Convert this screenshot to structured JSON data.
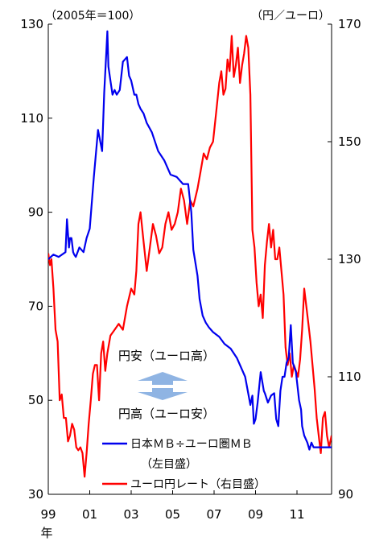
{
  "chart_data": {
    "type": "line",
    "left_unit": "（2005年＝100）",
    "right_unit": "（円／ユーロ）",
    "left_axis": {
      "min": 30,
      "max": 130,
      "ticks": [
        30,
        50,
        70,
        90,
        110,
        130
      ]
    },
    "right_axis": {
      "min": 90,
      "max": 170,
      "ticks": [
        90,
        110,
        130,
        150,
        170
      ]
    },
    "x_axis": {
      "min": 1999,
      "max": 2012.67,
      "ticks": [
        {
          "value": 1999,
          "label": "99"
        },
        {
          "value": 2001,
          "label": "01"
        },
        {
          "value": 2003,
          "label": "03"
        },
        {
          "value": 2005,
          "label": "05"
        },
        {
          "value": 2007,
          "label": "07"
        },
        {
          "value": 2009,
          "label": "09"
        },
        {
          "value": 2011,
          "label": "11"
        }
      ],
      "unit": "年"
    },
    "annotations": {
      "weak_yen": "円安（ユーロ高）",
      "strong_yen": "円高（ユーロ安）"
    },
    "legend": {
      "mb_line1": "日本ＭＢ÷ユーロ圏ＭＢ",
      "mb_line2": "（左目盛）",
      "fx": "ユーロ円レート（右目盛）"
    },
    "colors": {
      "mb": "#0000ee",
      "fx": "#ff0000",
      "arrow": "#8fb4e3"
    },
    "series": [
      {
        "name": "日本ＭＢ÷ユーロ圏ＭＢ",
        "axis": "left",
        "x": [
          1999.0,
          1999.25,
          1999.5,
          1999.83,
          1999.9,
          2000.0,
          2000.05,
          2000.12,
          2000.2,
          2000.25,
          2000.33,
          2000.5,
          2000.7,
          2000.85,
          2001.0,
          2001.2,
          2001.4,
          2001.6,
          2001.7,
          2001.8,
          2001.85,
          2001.9,
          2002.0,
          2002.1,
          2002.2,
          2002.3,
          2002.45,
          2002.6,
          2002.8,
          2002.9,
          2003.0,
          2003.15,
          2003.25,
          2003.35,
          2003.45,
          2003.6,
          2003.75,
          2004.0,
          2004.3,
          2004.6,
          2004.9,
          2005.2,
          2005.5,
          2005.75,
          2005.9,
          2006.0,
          2006.2,
          2006.3,
          2006.45,
          2006.6,
          2006.75,
          2006.95,
          2007.25,
          2007.5,
          2007.8,
          2008.1,
          2008.5,
          2008.75,
          2008.85,
          2008.92,
          2009.0,
          2009.1,
          2009.25,
          2009.4,
          2009.45,
          2009.6,
          2009.75,
          2009.9,
          2010.0,
          2010.1,
          2010.2,
          2010.3,
          2010.4,
          2010.5,
          2010.6,
          2010.7,
          2010.8,
          2010.95,
          2011.1,
          2011.2,
          2011.25,
          2011.35,
          2011.5,
          2011.6,
          2011.7,
          2011.8,
          2011.9,
          2012.0,
          2012.15,
          2012.3,
          2012.4,
          2012.5,
          2012.67
        ],
        "values": [
          80,
          81,
          80.5,
          81.5,
          88.5,
          82.5,
          84.5,
          84.5,
          81.5,
          81,
          80.5,
          82.5,
          81.5,
          84.5,
          86.5,
          97.5,
          107.5,
          103,
          115.5,
          124,
          128.5,
          121,
          118,
          115,
          116,
          115,
          116,
          122,
          123,
          119,
          118,
          115,
          115,
          113,
          112,
          111,
          109,
          107,
          103,
          101,
          98,
          97.5,
          96,
          96,
          90,
          82,
          76.5,
          71.5,
          68,
          66.5,
          65.5,
          64.5,
          63.5,
          62,
          61,
          59,
          55,
          49,
          51,
          45,
          46,
          49.5,
          56,
          52,
          51.5,
          49.5,
          51,
          51.5,
          46,
          44.5,
          52,
          55,
          55,
          58,
          59,
          66,
          58,
          56,
          50,
          48,
          44.5,
          42.5,
          41,
          39.5,
          41,
          40,
          40,
          40,
          40,
          40,
          40,
          40,
          40
        ]
      },
      {
        "name": "ユーロ円レート（右目盛）",
        "axis": "right",
        "x": [
          1999.0,
          1999.08,
          1999.15,
          1999.25,
          1999.35,
          1999.45,
          1999.55,
          1999.65,
          1999.75,
          1999.85,
          1999.95,
          2000.05,
          2000.15,
          2000.25,
          2000.35,
          2000.45,
          2000.55,
          2000.65,
          2000.75,
          2000.85,
          2000.95,
          2001.05,
          2001.15,
          2001.25,
          2001.35,
          2001.45,
          2001.55,
          2001.65,
          2001.75,
          2001.85,
          2002.0,
          2002.2,
          2002.4,
          2002.6,
          2002.8,
          2003.0,
          2003.15,
          2003.25,
          2003.35,
          2003.45,
          2003.6,
          2003.75,
          2003.9,
          2004.05,
          2004.2,
          2004.35,
          2004.5,
          2004.65,
          2004.8,
          2004.95,
          2005.1,
          2005.25,
          2005.4,
          2005.55,
          2005.7,
          2005.85,
          2006.0,
          2006.2,
          2006.35,
          2006.5,
          2006.65,
          2006.8,
          2006.95,
          2007.1,
          2007.25,
          2007.35,
          2007.45,
          2007.55,
          2007.65,
          2007.75,
          2007.85,
          2007.95,
          2008.05,
          2008.15,
          2008.25,
          2008.35,
          2008.45,
          2008.55,
          2008.65,
          2008.75,
          2008.85,
          2008.95,
          2009.05,
          2009.15,
          2009.25,
          2009.35,
          2009.45,
          2009.55,
          2009.65,
          2009.75,
          2009.85,
          2009.95,
          2010.05,
          2010.15,
          2010.25,
          2010.35,
          2010.45,
          2010.55,
          2010.65,
          2010.75,
          2010.85,
          2010.95,
          2011.05,
          2011.15,
          2011.25,
          2011.35,
          2011.45,
          2011.55,
          2011.65,
          2011.75,
          2011.85,
          2011.95,
          2012.05,
          2012.15,
          2012.25,
          2012.35,
          2012.45,
          2012.55,
          2012.67
        ],
        "values": [
          131,
          129,
          130,
          125,
          118,
          116,
          106,
          107,
          103,
          103,
          99,
          100,
          102,
          101,
          98,
          97.5,
          98,
          97,
          93,
          97,
          102,
          106,
          110.5,
          112,
          112,
          106,
          114,
          116,
          111,
          114,
          117,
          118,
          119,
          118,
          122,
          125,
          124,
          128,
          136,
          138,
          133,
          128,
          132,
          136,
          134,
          131,
          132,
          136,
          138,
          135,
          136,
          138,
          142,
          140,
          136,
          140,
          139,
          142,
          145,
          148,
          147,
          149,
          150,
          155,
          160,
          162,
          158,
          159,
          164,
          162,
          168,
          161,
          163,
          166,
          160,
          163,
          165,
          168,
          166,
          158,
          135,
          132,
          126,
          122,
          124,
          120,
          129,
          133,
          136,
          132,
          135,
          130,
          130,
          132,
          128,
          124,
          115,
          112,
          114,
          110,
          112,
          111,
          110,
          113,
          118,
          125,
          122,
          119,
          116,
          112,
          108,
          103,
          100,
          97,
          103,
          104,
          100,
          98,
          100
        ]
      }
    ]
  }
}
